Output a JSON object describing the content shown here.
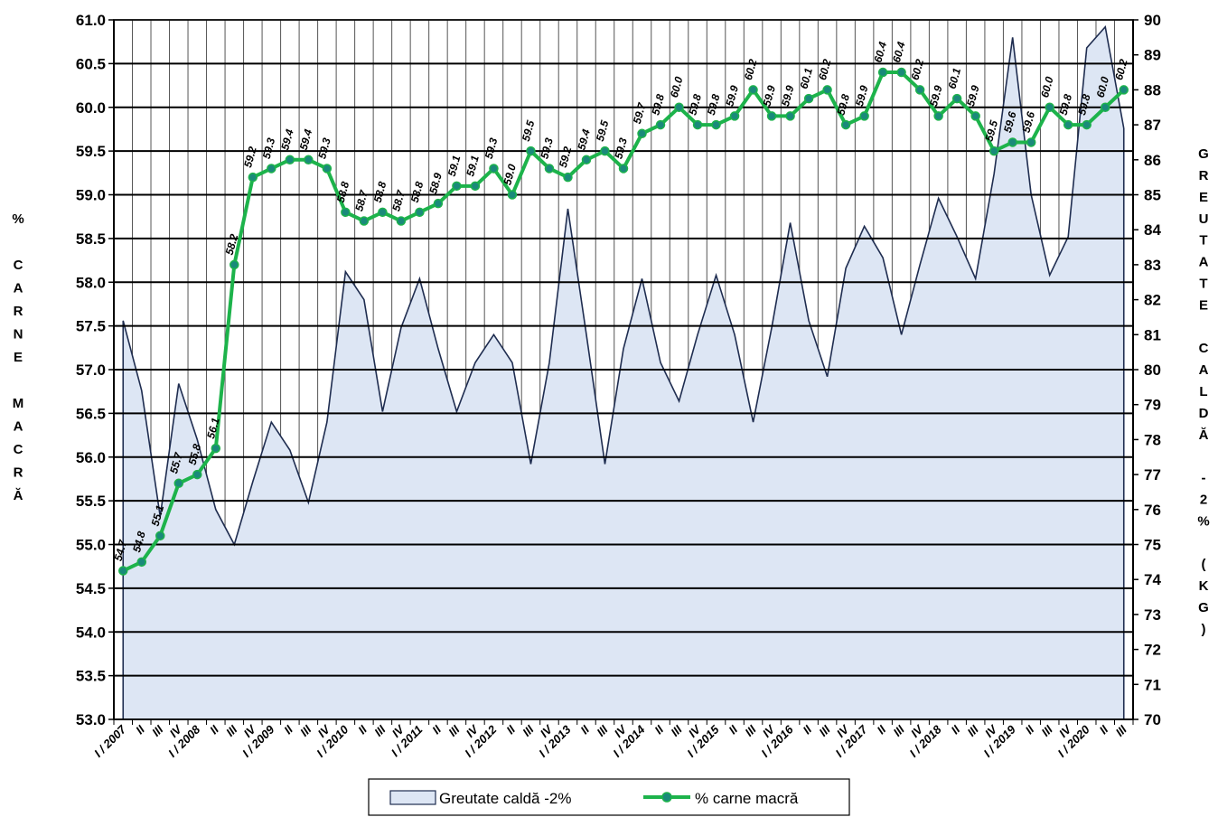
{
  "chart_data": {
    "type": "line",
    "categories": [
      "I / 2007",
      "II",
      "III",
      "IV",
      "I / 2008",
      "II",
      "III",
      "IV",
      "I / 2009",
      "II",
      "III",
      "IV",
      "I / 2010",
      "II",
      "III",
      "IV",
      "I / 2011",
      "II",
      "III",
      "IV",
      "I / 2012",
      "II",
      "III",
      "IV",
      "I / 2013",
      "II",
      "III",
      "IV",
      "I / 2014",
      "II",
      "III",
      "IV",
      "I / 2015",
      "II",
      "III",
      "IV",
      "I / 2016",
      "II",
      "III",
      "IV",
      "I / 2017",
      "II",
      "III",
      "IV",
      "I / 2018",
      "II",
      "III",
      "IV",
      "I / 2019",
      "II",
      "III",
      "IV",
      "I / 2020",
      "II",
      "III"
    ],
    "series": [
      {
        "name": "Greutate caldă -2%",
        "type": "area",
        "axis": "right",
        "color": "#1f2d50",
        "fill": "#dde6f4",
        "values": [
          81.4,
          79.4,
          75.8,
          79.6,
          78.0,
          76.0,
          75.0,
          76.8,
          78.5,
          77.7,
          76.2,
          78.5,
          82.8,
          82.0,
          78.8,
          81.2,
          82.6,
          80.6,
          78.8,
          80.2,
          81.0,
          80.2,
          77.3,
          80.2,
          84.6,
          81.0,
          77.3,
          80.6,
          82.6,
          80.2,
          79.1,
          81.0,
          82.7,
          81.0,
          78.5,
          81.2,
          84.2,
          81.4,
          79.8,
          82.9,
          84.1,
          83.2,
          81.0,
          83.0,
          84.9,
          83.8,
          82.6,
          85.6,
          89.5,
          85.0,
          82.7,
          83.8,
          89.2,
          89.8,
          86.9
        ]
      },
      {
        "name": "% carne macră",
        "type": "line",
        "axis": "left",
        "color": "#1db34b",
        "marker_color": "#1a8a7a",
        "values": [
          54.7,
          54.8,
          55.1,
          55.7,
          55.8,
          56.1,
          58.2,
          59.2,
          59.3,
          59.4,
          59.4,
          59.3,
          58.8,
          58.7,
          58.8,
          58.7,
          58.8,
          58.9,
          59.1,
          59.1,
          59.3,
          59.0,
          59.5,
          59.3,
          59.2,
          59.4,
          59.5,
          59.3,
          59.7,
          59.8,
          60.0,
          59.8,
          59.8,
          59.9,
          60.2,
          59.9,
          59.9,
          60.1,
          60.2,
          59.8,
          59.9,
          60.4,
          60.4,
          60.2,
          59.9,
          60.1,
          59.9,
          59.5,
          59.6,
          59.6,
          60.0,
          59.8,
          59.8,
          60.0,
          60.2
        ]
      }
    ],
    "data_labels": [
      "54.7",
      "54.8",
      "55.1",
      "55.7",
      "55.8",
      "56.1",
      "58.2",
      "59.2",
      "59.3",
      "59.4",
      "59.4",
      "59.3",
      "58.8",
      "58.7",
      "58.8",
      "58.7",
      "58.8",
      "58.9",
      "59.1",
      "59.1",
      "59.3",
      "59.0",
      "59.5",
      "59.3",
      "59.2",
      "59.4",
      "59.5",
      "59.3",
      "59.7",
      "59.8",
      "60.0",
      "59.8",
      "59.8",
      "59.9",
      "60.2",
      "59.9",
      "59.9",
      "60.1",
      "60.2",
      "59.8",
      "59.9",
      "60.4",
      "60.4",
      "60.2",
      "59.9",
      "60.1",
      "59.9",
      "59.5",
      "59.6",
      "59.6",
      "60.0",
      "59.8",
      "59.8",
      "60.0",
      "60.2"
    ],
    "left_axis": {
      "label_letters": [
        "%",
        "",
        "C",
        "A",
        "R",
        "N",
        "E",
        "",
        "M",
        "A",
        "C",
        "R",
        "Ă"
      ],
      "ylim": [
        53.0,
        61.0
      ],
      "step": 0.5,
      "tick_labels": [
        "53.0",
        "53.5",
        "54.0",
        "54.5",
        "55.0",
        "55.5",
        "56.0",
        "56.5",
        "57.0",
        "57.5",
        "58.0",
        "58.5",
        "59.0",
        "59.5",
        "60.0",
        "60.5",
        "61.0"
      ]
    },
    "right_axis": {
      "label_letters": [
        "G",
        "R",
        "E",
        "U",
        "T",
        "A",
        "T",
        "E",
        "",
        "C",
        "A",
        "L",
        "D",
        "Ă",
        "",
        "-",
        "2",
        "%",
        "",
        "(",
        "K",
        "G",
        ")"
      ],
      "ylim": [
        70,
        90
      ],
      "step": 1,
      "tick_labels": [
        "70",
        "71",
        "72",
        "73",
        "74",
        "75",
        "76",
        "77",
        "78",
        "79",
        "80",
        "81",
        "82",
        "83",
        "84",
        "85",
        "86",
        "87",
        "88",
        "89",
        "90"
      ]
    },
    "grid": true,
    "legend": {
      "position": "bottom",
      "items": [
        "Greutate caldă -2%",
        "% carne macră"
      ]
    }
  }
}
